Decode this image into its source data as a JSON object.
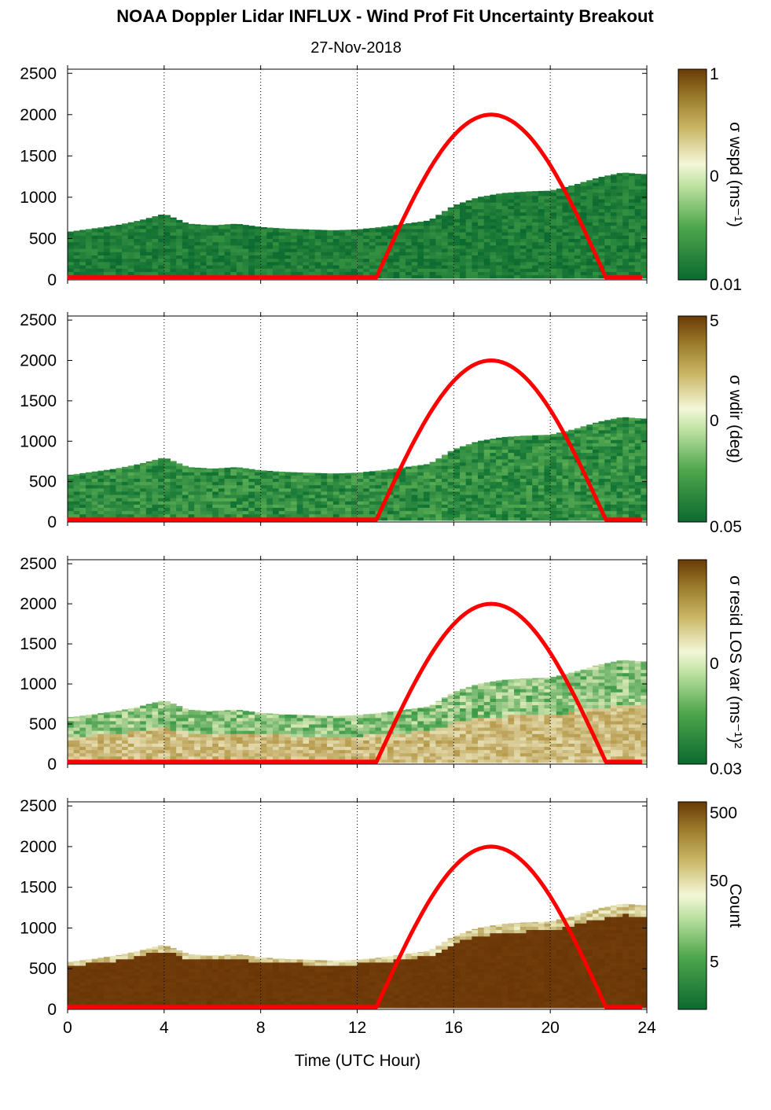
{
  "figure": {
    "title": "NOAA Doppler Lidar INFLUX - Wind Prof Fit Uncertainty Breakout",
    "subtitle": "27-Nov-2018",
    "xlabel": "Time (UTC Hour)"
  },
  "colors": {
    "sun_curve": "#ff0000",
    "low": "#0b6a30",
    "mid": "#f3f7d8",
    "high": "#6a3a06"
  },
  "chart_data": [
    {
      "type": "heatmap",
      "panel": "wspd",
      "colorbar_label": "σ wspd (ms⁻¹)",
      "colorbar_ticks": [
        "1",
        "0",
        "0.01"
      ],
      "x_ticks": [
        "0",
        "4",
        "8",
        "12",
        "16",
        "20",
        "24"
      ],
      "y_ticks": [
        "0",
        "500",
        "1000",
        "1500",
        "2000",
        "2500"
      ],
      "xlim": [
        0,
        24
      ],
      "ylim": [
        0,
        2550
      ],
      "data_top_height_m": [
        [
          0,
          580
        ],
        [
          1,
          620
        ],
        [
          2,
          660
        ],
        [
          3,
          720
        ],
        [
          4,
          800
        ],
        [
          5,
          680
        ],
        [
          6,
          660
        ],
        [
          7,
          680
        ],
        [
          8,
          640
        ],
        [
          9,
          620
        ],
        [
          10,
          610
        ],
        [
          11,
          600
        ],
        [
          12,
          610
        ],
        [
          13,
          640
        ],
        [
          14,
          680
        ],
        [
          15,
          720
        ],
        [
          16,
          900
        ],
        [
          17,
          1000
        ],
        [
          18,
          1050
        ],
        [
          19,
          1070
        ],
        [
          20,
          1080
        ],
        [
          21,
          1150
        ],
        [
          22,
          1240
        ],
        [
          23,
          1300
        ],
        [
          23.8,
          1280
        ]
      ],
      "dominant_colour": "dark green",
      "sun_elevation_curve": {
        "start_hour": 12.8,
        "peak_hour": 17.5,
        "end_hour": 22.3,
        "peak_height_m": 2000,
        "base_height_m": 30
      }
    },
    {
      "type": "heatmap",
      "panel": "wdir",
      "colorbar_label": "σ wdir (deg)",
      "colorbar_ticks": [
        "5",
        "0",
        "0.05"
      ],
      "x_ticks": [
        "0",
        "4",
        "8",
        "12",
        "16",
        "20",
        "24"
      ],
      "y_ticks": [
        "0",
        "500",
        "1000",
        "1500",
        "2000",
        "2500"
      ],
      "xlim": [
        0,
        24
      ],
      "ylim": [
        0,
        2550
      ],
      "data_top_height_m": [
        [
          0,
          580
        ],
        [
          1,
          620
        ],
        [
          2,
          660
        ],
        [
          3,
          720
        ],
        [
          4,
          800
        ],
        [
          5,
          680
        ],
        [
          6,
          660
        ],
        [
          7,
          680
        ],
        [
          8,
          640
        ],
        [
          9,
          620
        ],
        [
          10,
          610
        ],
        [
          11,
          600
        ],
        [
          12,
          610
        ],
        [
          13,
          640
        ],
        [
          14,
          680
        ],
        [
          15,
          720
        ],
        [
          16,
          900
        ],
        [
          17,
          1000
        ],
        [
          18,
          1050
        ],
        [
          19,
          1070
        ],
        [
          20,
          1080
        ],
        [
          21,
          1150
        ],
        [
          22,
          1240
        ],
        [
          23,
          1300
        ],
        [
          23.8,
          1280
        ]
      ],
      "dominant_colour": "green",
      "sun_elevation_curve": {
        "start_hour": 12.8,
        "peak_hour": 17.5,
        "end_hour": 22.3,
        "peak_height_m": 2000,
        "base_height_m": 30
      }
    },
    {
      "type": "heatmap",
      "panel": "resid",
      "colorbar_label": "σ resid LOS var (ms⁻¹)²",
      "colorbar_ticks": [
        "0",
        "0.03"
      ],
      "x_ticks": [
        "0",
        "4",
        "8",
        "12",
        "16",
        "20",
        "24"
      ],
      "y_ticks": [
        "0",
        "500",
        "1000",
        "1500",
        "2000",
        "2500"
      ],
      "xlim": [
        0,
        24
      ],
      "ylim": [
        0,
        2550
      ],
      "data_top_height_m": [
        [
          0,
          580
        ],
        [
          1,
          620
        ],
        [
          2,
          660
        ],
        [
          3,
          720
        ],
        [
          4,
          800
        ],
        [
          5,
          680
        ],
        [
          6,
          660
        ],
        [
          7,
          680
        ],
        [
          8,
          640
        ],
        [
          9,
          620
        ],
        [
          10,
          610
        ],
        [
          11,
          600
        ],
        [
          12,
          610
        ],
        [
          13,
          640
        ],
        [
          14,
          680
        ],
        [
          15,
          720
        ],
        [
          16,
          900
        ],
        [
          17,
          1000
        ],
        [
          18,
          1050
        ],
        [
          19,
          1070
        ],
        [
          20,
          1080
        ],
        [
          21,
          1150
        ],
        [
          22,
          1240
        ],
        [
          23,
          1300
        ],
        [
          23.8,
          1280
        ]
      ],
      "dominant_colour": "tan/brown below ~400 m, light green above",
      "sun_elevation_curve": {
        "start_hour": 12.8,
        "peak_hour": 17.5,
        "end_hour": 22.3,
        "peak_height_m": 2000,
        "base_height_m": 30
      }
    },
    {
      "type": "heatmap",
      "panel": "count",
      "colorbar_label": "Count",
      "colorbar_ticks": [
        "500",
        "50",
        "5"
      ],
      "x_ticks": [
        "0",
        "4",
        "8",
        "12",
        "16",
        "20",
        "24"
      ],
      "y_ticks": [
        "0",
        "500",
        "1000",
        "1500",
        "2000",
        "2500"
      ],
      "xlim": [
        0,
        24
      ],
      "ylim": [
        0,
        2550
      ],
      "data_top_height_m": [
        [
          0,
          580
        ],
        [
          1,
          620
        ],
        [
          2,
          660
        ],
        [
          3,
          720
        ],
        [
          4,
          800
        ],
        [
          5,
          680
        ],
        [
          6,
          660
        ],
        [
          7,
          680
        ],
        [
          8,
          640
        ],
        [
          9,
          620
        ],
        [
          10,
          610
        ],
        [
          11,
          600
        ],
        [
          12,
          610
        ],
        [
          13,
          640
        ],
        [
          14,
          680
        ],
        [
          15,
          720
        ],
        [
          16,
          900
        ],
        [
          17,
          1000
        ],
        [
          18,
          1050
        ],
        [
          19,
          1070
        ],
        [
          20,
          1080
        ],
        [
          21,
          1150
        ],
        [
          22,
          1240
        ],
        [
          23,
          1300
        ],
        [
          23.8,
          1280
        ]
      ],
      "dominant_colour": "dark brown",
      "sun_elevation_curve": {
        "start_hour": 12.8,
        "peak_hour": 17.5,
        "end_hour": 22.3,
        "peak_height_m": 2000,
        "base_height_m": 30
      }
    }
  ]
}
